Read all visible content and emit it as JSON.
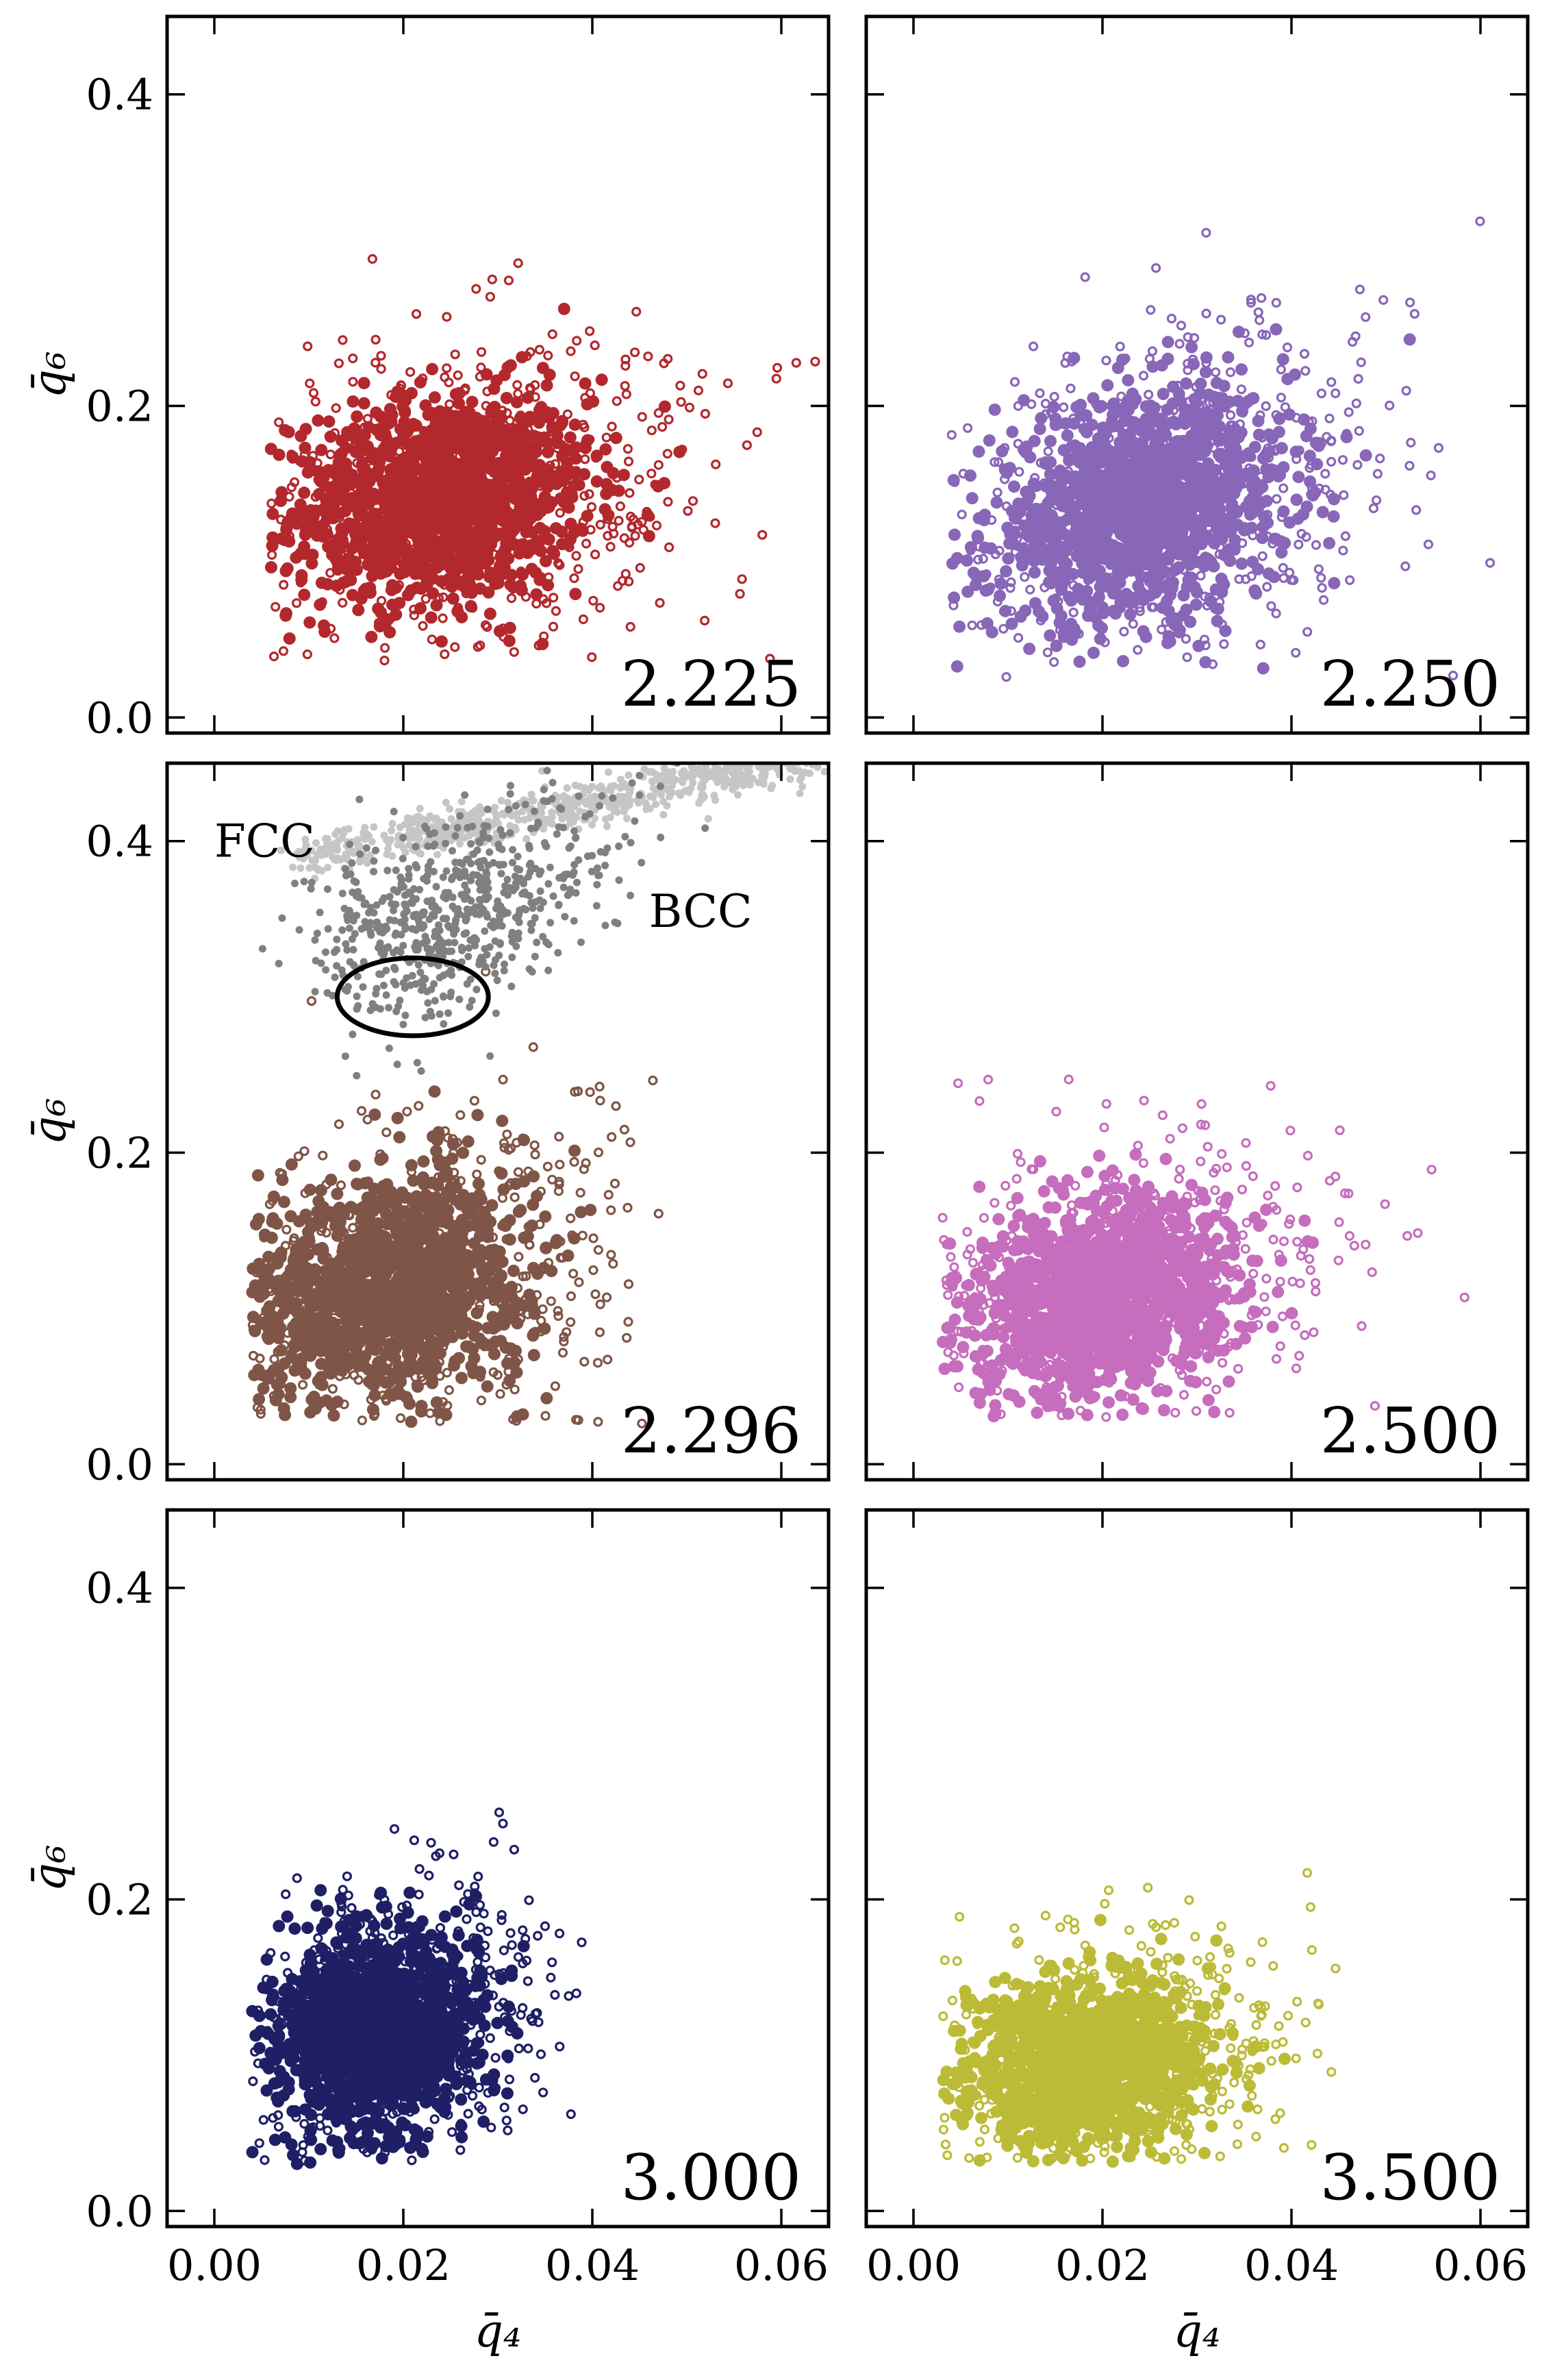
{
  "chart_data": [
    {
      "type": "scatter",
      "panel_label": "2.225",
      "color": "#b3282d",
      "xlabel": "",
      "ylabel": "q̄₆",
      "xlim": [
        -0.005,
        0.065
      ],
      "ylim": [
        -0.01,
        0.45
      ],
      "xticks": [
        0.0,
        0.02,
        0.04,
        0.06
      ],
      "yticks": [
        0.0,
        0.2,
        0.4
      ],
      "xtick_labels": [],
      "ytick_labels": [
        "0.0",
        "0.2",
        "0.4"
      ],
      "series": [
        {
          "kind": "cloud",
          "x_range": [
            0.006,
            0.065
          ],
          "y_range": [
            0.035,
            0.34
          ],
          "center": [
            0.024,
            0.14
          ],
          "spread": [
            0.0075,
            0.032
          ],
          "correlation": 0.15
        }
      ]
    },
    {
      "type": "scatter",
      "panel_label": "2.250",
      "color": "#8866b8",
      "xlabel": "",
      "ylabel": "",
      "xlim": [
        -0.005,
        0.065
      ],
      "ylim": [
        -0.01,
        0.45
      ],
      "xticks": [
        0.0,
        0.02,
        0.04,
        0.06
      ],
      "yticks": [
        0.0,
        0.2,
        0.4
      ],
      "xtick_labels": [],
      "ytick_labels": [],
      "series": [
        {
          "kind": "cloud",
          "x_range": [
            0.004,
            0.065
          ],
          "y_range": [
            0.025,
            0.33
          ],
          "center": [
            0.024,
            0.135
          ],
          "spread": [
            0.0075,
            0.034
          ],
          "correlation": 0.25
        }
      ]
    },
    {
      "type": "scatter",
      "panel_label": "2.296",
      "color": "#7f5547",
      "xlabel": "",
      "ylabel": "q̄₆",
      "xlim": [
        -0.005,
        0.065
      ],
      "ylim": [
        -0.01,
        0.45
      ],
      "xticks": [
        0.0,
        0.02,
        0.04,
        0.06
      ],
      "yticks": [
        0.0,
        0.2,
        0.4
      ],
      "xtick_labels": [],
      "ytick_labels": [
        "0.0",
        "0.2",
        "0.4"
      ],
      "annotations": [
        "FCC",
        "BCC"
      ],
      "ellipse": {
        "center": [
          0.021,
          0.3
        ],
        "width": 0.016,
        "height": 0.05
      },
      "series": [
        {
          "kind": "cloud",
          "x_range": [
            0.004,
            0.063
          ],
          "y_range": [
            0.025,
            0.32
          ],
          "center": [
            0.018,
            0.115
          ],
          "spread": [
            0.007,
            0.035
          ],
          "correlation": 0.2
        },
        {
          "name": "FCC",
          "kind": "band",
          "color": "#c6c6c6",
          "from": [
            0.01,
            0.39
          ],
          "to": [
            0.065,
            0.455
          ],
          "width": 0.007
        },
        {
          "name": "BCC",
          "kind": "band",
          "color": "#808080",
          "from": [
            0.012,
            0.315
          ],
          "to": [
            0.042,
            0.405
          ],
          "width": 0.018
        }
      ]
    },
    {
      "type": "scatter",
      "panel_label": "2.500",
      "color": "#c66dbd",
      "xlabel": "",
      "ylabel": "",
      "xlim": [
        -0.005,
        0.065
      ],
      "ylim": [
        -0.01,
        0.45
      ],
      "xticks": [
        0.0,
        0.02,
        0.04,
        0.06
      ],
      "yticks": [
        0.0,
        0.2,
        0.4
      ],
      "xtick_labels": [],
      "ytick_labels": [],
      "series": [
        {
          "kind": "cloud",
          "x_range": [
            0.003,
            0.063
          ],
          "y_range": [
            0.03,
            0.31
          ],
          "center": [
            0.02,
            0.11
          ],
          "spread": [
            0.0065,
            0.03
          ],
          "correlation": 0.2
        }
      ]
    },
    {
      "type": "scatter",
      "panel_label": "3.000",
      "color": "#1f1f66",
      "xlabel": "q̄₄",
      "ylabel": "q̄₆",
      "xlim": [
        -0.005,
        0.065
      ],
      "ylim": [
        -0.01,
        0.45
      ],
      "xticks": [
        0.0,
        0.02,
        0.04,
        0.06
      ],
      "yticks": [
        0.0,
        0.2,
        0.4
      ],
      "xtick_labels": [
        "0.00",
        "0.02",
        "0.04",
        "0.06"
      ],
      "ytick_labels": [
        "0.0",
        "0.2",
        "0.4"
      ],
      "series": [
        {
          "kind": "cloud",
          "x_range": [
            0.004,
            0.04
          ],
          "y_range": [
            0.03,
            0.27
          ],
          "center": [
            0.017,
            0.115
          ],
          "spread": [
            0.005,
            0.03
          ],
          "correlation": 0.1
        }
      ]
    },
    {
      "type": "scatter",
      "panel_label": "3.500",
      "color": "#bcbb37",
      "xlabel": "q̄₄",
      "ylabel": "",
      "xlim": [
        -0.005,
        0.065
      ],
      "ylim": [
        -0.01,
        0.45
      ],
      "xticks": [
        0.0,
        0.02,
        0.04,
        0.06
      ],
      "yticks": [
        0.0,
        0.2,
        0.4
      ],
      "xtick_labels": [
        "0.00",
        "0.02",
        "0.04",
        "0.06"
      ],
      "ytick_labels": [],
      "series": [
        {
          "kind": "cloud",
          "x_range": [
            0.003,
            0.045
          ],
          "y_range": [
            0.03,
            0.22
          ],
          "center": [
            0.018,
            0.095
          ],
          "spread": [
            0.006,
            0.026
          ],
          "correlation": 0.15
        }
      ]
    }
  ]
}
